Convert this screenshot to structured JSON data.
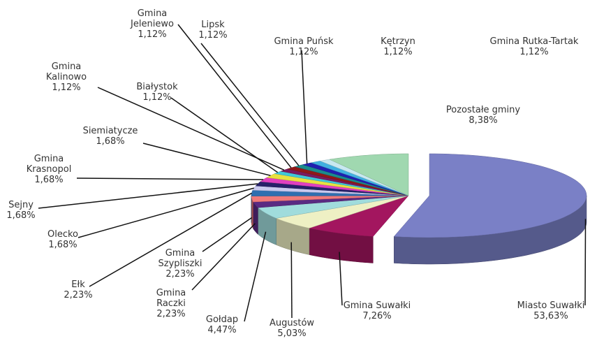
{
  "chart_data": {
    "type": "pie3d",
    "categories": [
      "Miasto Suwałki",
      "Gmina Suwałki",
      "Augustów",
      "Gołdap",
      "Gmina Raczki",
      "Gmina Szypliszki",
      "Ełk",
      "Olecko",
      "Sejny",
      "Gmina Krasnopol",
      "Siemiatycze",
      "Białystok",
      "Gmina Kalinowo",
      "Gmina Jeleniewo",
      "Lipsk",
      "Gmina Puńsk",
      "Kętrzyn",
      "Gmina Rutka-Tartak",
      "Pozostałe gminy"
    ],
    "values": [
      53.63,
      7.26,
      5.03,
      4.47,
      2.23,
      2.23,
      2.23,
      1.68,
      1.68,
      1.68,
      1.68,
      1.12,
      1.12,
      1.12,
      1.12,
      1.12,
      1.12,
      1.12,
      8.38
    ],
    "value_labels": [
      "53,63%",
      "7,26%",
      "5,03%",
      "4,47%",
      "2,23%",
      "2,23%",
      "2,23%",
      "1,68%",
      "1,68%",
      "1,68%",
      "1,68%",
      "1,12%",
      "1,12%",
      "1,12%",
      "1,12%",
      "1,12%",
      "1,12%",
      "1,12%",
      "8,38%"
    ],
    "colors": [
      "#7a80c6",
      "#a3165f",
      "#eef0c4",
      "#a0dcdc",
      "#5a2a82",
      "#f07a7a",
      "#2f6fb0",
      "#c9c9ef",
      "#26206a",
      "#e040c0",
      "#e8e040",
      "#40c8d8",
      "#7a1a60",
      "#901818",
      "#1a8c8c",
      "#2020b0",
      "#40b0e0",
      "#c8e8f0",
      "#a0d8b0"
    ]
  }
}
